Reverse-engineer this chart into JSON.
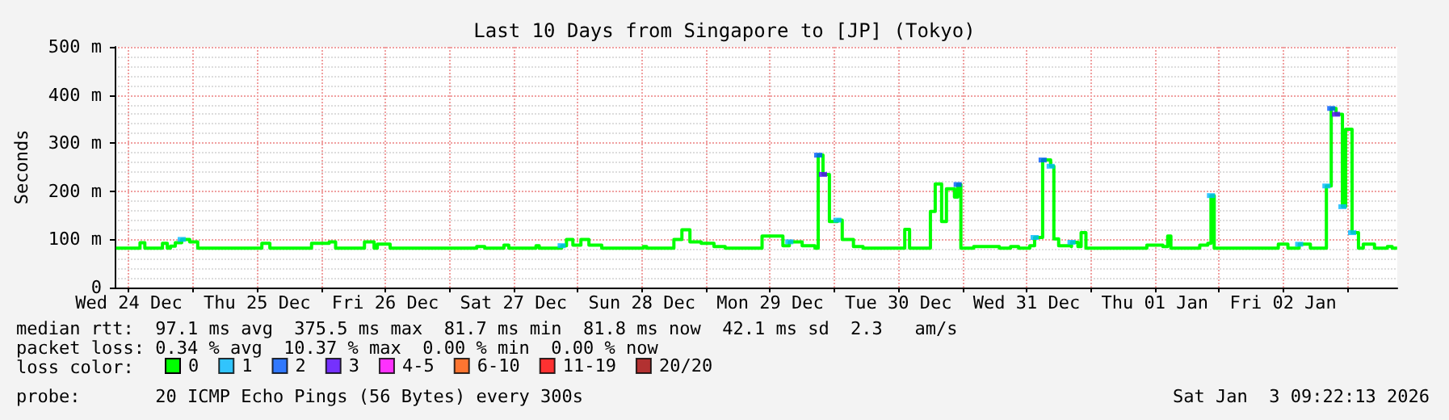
{
  "chart_data": {
    "type": "step",
    "title": "Last 10 Days from Singapore to [JP] (Tokyo)",
    "ylabel": "Seconds",
    "legend_title": "loss color:",
    "legend": "bottom",
    "grid": true,
    "marker": "none",
    "xlim": [
      "2025-12-24T09:22",
      "2026-01-03T09:22"
    ],
    "xticks": [
      {
        "value": "2025-12-24T12:00",
        "label": "Wed 24 Dec"
      },
      {
        "value": "2025-12-25T00:00",
        "label": null
      },
      {
        "value": "2025-12-25T12:00",
        "label": "Thu 25 Dec"
      },
      {
        "value": "2025-12-26T00:00",
        "label": null
      },
      {
        "value": "2025-12-26T12:00",
        "label": "Fri 26 Dec"
      },
      {
        "value": "2025-12-27T00:00",
        "label": null
      },
      {
        "value": "2025-12-27T12:00",
        "label": "Sat 27 Dec"
      },
      {
        "value": "2025-12-28T00:00",
        "label": null
      },
      {
        "value": "2025-12-28T12:00",
        "label": "Sun 28 Dec"
      },
      {
        "value": "2025-12-29T00:00",
        "label": null
      },
      {
        "value": "2025-12-29T12:00",
        "label": "Mon 29 Dec"
      },
      {
        "value": "2025-12-30T00:00",
        "label": null
      },
      {
        "value": "2025-12-30T12:00",
        "label": "Tue 30 Dec"
      },
      {
        "value": "2025-12-31T00:00",
        "label": null
      },
      {
        "value": "2025-12-31T12:00",
        "label": "Wed 31 Dec"
      },
      {
        "value": "2026-01-01T00:00",
        "label": null
      },
      {
        "value": "2026-01-01T12:00",
        "label": "Thu 01 Jan"
      },
      {
        "value": "2026-01-02T00:00",
        "label": null
      },
      {
        "value": "2026-01-02T12:00",
        "label": "Fri 02 Jan"
      },
      {
        "value": "2026-01-03T00:00",
        "label": null
      }
    ],
    "ylim": [
      0,
      500
    ],
    "yticks": [
      0,
      {
        "value": 100,
        "label": "100 m"
      },
      {
        "value": 200,
        "label": "200 m"
      },
      {
        "value": 300,
        "label": "300 m"
      },
      {
        "value": 400,
        "label": "400 m"
      },
      {
        "value": 500,
        "label": "500 m"
      }
    ],
    "series": [
      {
        "name": "0",
        "color": "#00ff00",
        "x": [
          "2025-12-24T09:36",
          "2025-12-24T13:30",
          "2025-12-24T14:06",
          "2025-12-24T15:00",
          "2025-12-24T18:00",
          "2025-12-24T18:18",
          "2025-12-24T19:12",
          "2025-12-24T19:48",
          "2025-12-24T20:42",
          "2025-12-24T21:54",
          "2025-12-24T23:24",
          "2025-12-25T00:54",
          "2025-12-25T10:30",
          "2025-12-25T12:54",
          "2025-12-25T14:24",
          "2025-12-25T21:00",
          "2025-12-25T22:12",
          "2025-12-26T01:30",
          "2025-12-26T02:42",
          "2025-12-26T08:06",
          "2025-12-26T09:54",
          "2025-12-26T10:30",
          "2025-12-26T12:54",
          "2025-12-27T04:30",
          "2025-12-27T05:06",
          "2025-12-27T06:36",
          "2025-12-27T10:12",
          "2025-12-27T11:06",
          "2025-12-27T16:12",
          "2025-12-27T16:48",
          "2025-12-27T21:00",
          "2025-12-27T21:54",
          "2025-12-27T23:06",
          "2025-12-28T00:36",
          "2025-12-28T02:06",
          "2025-12-28T04:30",
          "2025-12-28T12:18",
          "2025-12-28T12:54",
          "2025-12-28T18:00",
          "2025-12-28T19:30",
          "2025-12-28T21:00",
          "2025-12-28T23:06",
          "2025-12-29T01:30",
          "2025-12-29T03:36",
          "2025-12-29T10:30",
          "2025-12-29T14:24",
          "2025-12-29T15:36",
          "2025-12-29T18:00",
          "2025-12-29T20:24",
          "2025-12-29T21:00",
          "2025-12-29T21:54",
          "2025-12-29T23:06",
          "2025-12-30T00:36",
          "2025-12-30T01:30",
          "2025-12-30T03:36",
          "2025-12-30T05:24",
          "2025-12-30T12:54",
          "2025-12-30T13:12",
          "2025-12-30T14:06",
          "2025-12-30T17:24",
          "2025-12-30T18:00",
          "2025-12-30T18:54",
          "2025-12-30T20:06",
          "2025-12-30T21:00",
          "2025-12-30T22:30",
          "2025-12-30T23:06",
          "2025-12-30T23:42",
          "2025-12-31T02:06",
          "2025-12-31T05:24",
          "2025-12-31T06:54",
          "2025-12-31T09:00",
          "2025-12-31T10:30",
          "2025-12-31T12:36",
          "2025-12-31T13:30",
          "2025-12-31T15:00",
          "2025-12-31T16:30",
          "2025-12-31T17:06",
          "2025-12-31T18:00",
          "2025-12-31T20:06",
          "2025-12-31T20:24",
          "2025-12-31T21:36",
          "2025-12-31T22:12",
          "2025-12-31T23:06",
          "2026-01-01T09:36",
          "2026-01-01T10:30",
          "2026-01-01T13:30",
          "2026-01-01T14:24",
          "2026-01-01T15:00",
          "2026-01-01T20:24",
          "2026-01-01T21:54",
          "2026-01-01T22:30",
          "2026-01-01T23:06",
          "2026-01-02T09:54",
          "2026-01-02T11:06",
          "2026-01-02T12:54",
          "2026-01-02T15:00",
          "2026-01-02T17:06",
          "2026-01-02T19:48",
          "2026-01-02T20:06",
          "2026-01-02T21:00",
          "2026-01-02T21:54",
          "2026-01-02T23:06",
          "2026-01-02T23:42",
          "2026-01-03T00:54",
          "2026-01-03T02:06",
          "2026-01-03T03:00",
          "2026-01-03T05:06",
          "2026-01-03T07:30",
          "2026-01-03T08:24",
          "2026-01-03T09:20"
        ],
        "values": [
          82,
          82,
          93,
          82,
          82,
          92,
          82,
          86,
          93,
          100,
          95,
          82,
          82,
          92,
          82,
          82,
          92,
          95,
          82,
          95,
          82,
          90,
          82,
          82,
          85,
          82,
          88,
          82,
          87,
          82,
          87,
          100,
          88,
          100,
          88,
          82,
          85,
          82,
          100,
          120,
          95,
          92,
          85,
          82,
          107,
          87,
          95,
          87,
          82,
          275,
          235,
          137,
          140,
          100,
          85,
          82,
          82,
          121,
          82,
          82,
          158,
          215,
          137,
          205,
          188,
          214,
          82,
          85,
          85,
          82,
          85,
          82,
          87,
          104,
          265,
          252,
          101,
          87,
          85,
          94,
          85,
          114,
          82,
          82,
          88,
          85,
          107,
          82,
          88,
          92,
          191,
          82,
          82,
          90,
          82,
          90,
          82,
          82,
          211,
          372,
          360,
          168,
          329,
          114,
          82,
          90,
          82,
          85,
          82,
          82
        ]
      },
      {
        "name": "1",
        "color": "#00b8ff",
        "type": "scatter",
        "marker": "square",
        "x": [
          "2025-12-24T21:54",
          "2025-12-27T21:00",
          "2025-12-29T15:36",
          "2025-12-30T00:36",
          "2025-12-31T13:30",
          "2025-12-31T16:30",
          "2025-12-31T20:24",
          "2026-01-01T22:30",
          "2026-01-02T15:00",
          "2026-01-02T20:06",
          "2026-01-02T23:06",
          "2026-01-03T00:54"
        ],
        "values": [
          100,
          87,
          95,
          140,
          104,
          252,
          94,
          191,
          90,
          211,
          168,
          114
        ]
      },
      {
        "name": "2",
        "color": "#0059ff",
        "type": "scatter",
        "marker": "square",
        "x": [
          "2025-12-29T21:00",
          "2025-12-30T23:06",
          "2025-12-31T15:00",
          "2026-01-02T21:00"
        ],
        "values": [
          275,
          214,
          265,
          372
        ]
      },
      {
        "name": "3",
        "color": "#5500ff",
        "type": "scatter",
        "marker": "square",
        "x": [
          "2025-12-29T21:54",
          "2026-01-02T21:54"
        ],
        "values": [
          235,
          360
        ]
      },
      {
        "name": "4-5",
        "color": "#ff00ff",
        "type": "scatter"
      },
      {
        "name": "6-10",
        "color": "#ff5500",
        "type": "scatter"
      },
      {
        "name": "11-19",
        "color": "#ff0000",
        "type": "scatter"
      },
      {
        "name": "20/20",
        "color": "#a10000",
        "type": "scatter"
      }
    ],
    "annotations": [
      "median rtt:  97.1 ms avg  375.5 ms max  81.7 ms min  81.8 ms now  42.1 ms sd  2.3   am/s",
      "packet loss: 0.34 % avg  10.37 % max  0.00 % min  0.00 % now",
      "probe:       20 ICMP Echo Pings (56 Bytes) every 300s",
      "Sat Jan  3 09:22:13 2026"
    ]
  }
}
